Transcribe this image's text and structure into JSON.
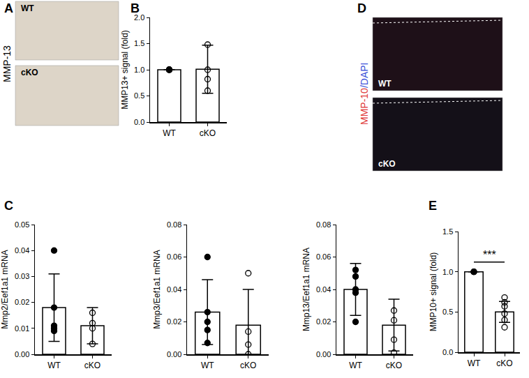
{
  "images": [
    {
      "panel": "A",
      "label_parts": [
        {
          "text": "MMP-13",
          "color": "#000000"
        }
      ],
      "frames": [
        {
          "text": "WT",
          "color": "#ddd5c8"
        },
        {
          "text": "cKO",
          "color": "#ddd5c8"
        }
      ]
    },
    {
      "panel": "D",
      "label_parts": [
        {
          "text": "MMP-10",
          "color": "#e03a3a"
        },
        {
          "text": "/DAPI",
          "color": "#3a4fd8"
        }
      ],
      "frames": [
        {
          "text": "WT",
          "color": "#1e1018"
        },
        {
          "text": "cKO",
          "color": "#141018"
        }
      ]
    }
  ],
  "chart_data": [
    {
      "type": "bar",
      "panel": "B",
      "y_label": "MMP13+ signal (fold)",
      "categories": [
        "WT",
        "cKO"
      ],
      "values": [
        1.0,
        1.01
      ],
      "error": [
        0.0,
        0.46
      ],
      "points": [
        [
          1.0,
          1.0,
          1.0,
          1.0
        ],
        [
          1.48,
          1.0,
          0.82,
          0.6
        ]
      ],
      "ylim": [
        0,
        2
      ],
      "yticks": [
        {
          "value": 0,
          "label": "0.0"
        },
        {
          "value": 0.5,
          "label": "0.5"
        },
        {
          "value": 1,
          "label": "1.0"
        },
        {
          "value": 1.5,
          "label": "1.5"
        },
        {
          "value": 2,
          "label": "2.0"
        }
      ],
      "color": "#ffffff",
      "marker": "circle"
    },
    {
      "type": "bar",
      "panel": "C",
      "y_label": "Mmp2/Eef1a1 mRNA",
      "categories": [
        "WT",
        "cKO"
      ],
      "values": [
        0.018,
        0.011
      ],
      "error": [
        0.013,
        0.007
      ],
      "points": [
        [
          0.04,
          0.018,
          0.011,
          0.01,
          0.009
        ],
        [
          0.016,
          0.012,
          0.01,
          0.004
        ]
      ],
      "ylim": [
        0,
        0.05
      ],
      "yticks": [
        {
          "value": 0,
          "label": "0.00"
        },
        {
          "value": 0.01,
          "label": "0.01"
        },
        {
          "value": 0.02,
          "label": "0.02"
        },
        {
          "value": 0.03,
          "label": "0.03"
        },
        {
          "value": 0.04,
          "label": "0.04"
        },
        {
          "value": 0.05,
          "label": "0.05"
        }
      ],
      "color": "#ffffff",
      "marker": "circle"
    },
    {
      "type": "bar",
      "y_label": "Mmp3/Eef1a1 mRNA",
      "categories": [
        "WT",
        "cKO"
      ],
      "values": [
        0.026,
        0.018
      ],
      "error": [
        0.02,
        0.022
      ],
      "points": [
        [
          0.06,
          0.026,
          0.02,
          0.015,
          0.007
        ],
        [
          0.05,
          0.014,
          0.006,
          0.0
        ]
      ],
      "ylim": [
        0,
        0.08
      ],
      "yticks": [
        {
          "value": 0,
          "label": "0.00"
        },
        {
          "value": 0.02,
          "label": "0.02"
        },
        {
          "value": 0.04,
          "label": "0.04"
        },
        {
          "value": 0.06,
          "label": "0.06"
        },
        {
          "value": 0.08,
          "label": "0.08"
        }
      ],
      "color": "#ffffff",
      "marker": "circle"
    },
    {
      "type": "bar",
      "y_label": "Mmp13/Eef1a1 mRNA",
      "categories": [
        "WT",
        "cKO"
      ],
      "values": [
        0.04,
        0.018
      ],
      "error": [
        0.016,
        0.016
      ],
      "points": [
        [
          0.052,
          0.048,
          0.04,
          0.038,
          0.02
        ],
        [
          0.027,
          0.021,
          0.009,
          0.001
        ]
      ],
      "ylim": [
        0,
        0.08
      ],
      "yticks": [
        {
          "value": 0,
          "label": "0.00"
        },
        {
          "value": 0.02,
          "label": "0.02"
        },
        {
          "value": 0.04,
          "label": "0.04"
        },
        {
          "value": 0.06,
          "label": "0.06"
        },
        {
          "value": 0.08,
          "label": "0.08"
        }
      ],
      "color": "#ffffff",
      "marker": "circle"
    },
    {
      "type": "bar",
      "panel": "E",
      "y_label": "MMP10+ signal (fold)",
      "categories": [
        "WT",
        "cKO"
      ],
      "values": [
        1.0,
        0.5
      ],
      "error": [
        0.0,
        0.13
      ],
      "points": [
        [
          1.0,
          1.0,
          1.0
        ],
        [
          0.68,
          0.62,
          0.57,
          0.48,
          0.4,
          0.31
        ]
      ],
      "ylim": [
        0,
        1.5
      ],
      "yticks": [
        {
          "value": 0,
          "label": "0.0"
        },
        {
          "value": 0.5,
          "label": "0.5"
        },
        {
          "value": 1,
          "label": "1.0"
        },
        {
          "value": 1.5,
          "label": "1.5"
        }
      ],
      "significance": {
        "text": "***",
        "from": "WT",
        "to": "cKO",
        "y": 1.12
      },
      "color": "#ffffff",
      "marker": "circle"
    }
  ]
}
